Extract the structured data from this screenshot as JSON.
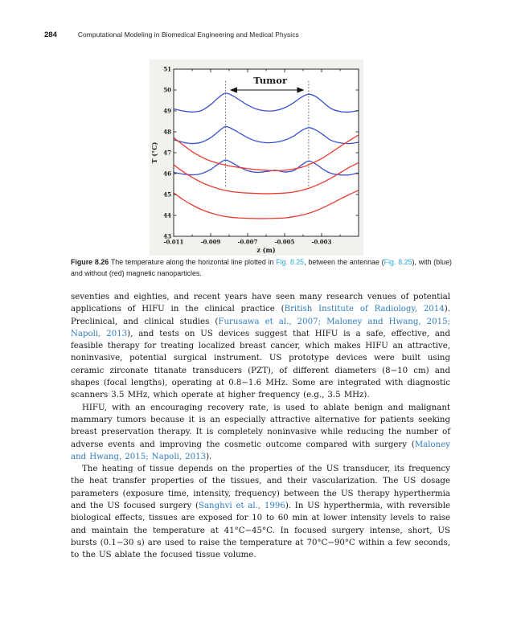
{
  "page": {
    "number": "284",
    "running_title": "Computational Modeling in Biomedical Engineering and Medical Physics"
  },
  "figure_caption": {
    "segments": [
      {
        "text": "Figure 8.26",
        "style": "bold"
      },
      {
        "text": " The temperature along the horizontal line plotted in ",
        "style": "plain"
      },
      {
        "text": "Fig. 8.25",
        "style": "link"
      },
      {
        "text": ", between the antennae (",
        "style": "plain"
      },
      {
        "text": "Fig. 8.25",
        "style": "link"
      },
      {
        "text": "), with (blue) and without (red) magnetic nanoparticles.",
        "style": "plain"
      }
    ]
  },
  "chart_data": {
    "type": "line",
    "title": "",
    "xlabel": "z (m)",
    "ylabel": "T (°C)",
    "xlim": [
      -0.011,
      -0.001
    ],
    "ylim": [
      43,
      51
    ],
    "xticks": {
      "labeled": [
        -0.011,
        -0.009,
        -0.007,
        -0.005,
        -0.003
      ],
      "minor_step": 0.001
    },
    "yticks": [
      43,
      44,
      45,
      46,
      47,
      48,
      49,
      50,
      51
    ],
    "grid": false,
    "legend": "none",
    "annotations": {
      "tumor_label": "Tumor",
      "tumor_region_z": [
        -0.0082,
        -0.0037
      ],
      "dashed_lines_T_range": [
        45.4,
        50.5
      ],
      "arrow_T": 50.0
    },
    "colors": {
      "with_nanoparticles": "#3a4fd2",
      "without_nanoparticles": "#ee3b30",
      "axis": "#2a2a2a",
      "dashed": "#3a3a3a",
      "figure_bg": "#f1f1ee"
    },
    "series": [
      {
        "id": "blue-upper",
        "name": "with nanoparticles (upper)",
        "group": "with_nanoparticles",
        "points": [
          [
            -0.011,
            49.1
          ],
          [
            -0.0105,
            49.0
          ],
          [
            -0.01,
            48.95
          ],
          [
            -0.0095,
            49.02
          ],
          [
            -0.009,
            49.3
          ],
          [
            -0.0086,
            49.62
          ],
          [
            -0.0082,
            49.85
          ],
          [
            -0.0078,
            49.72
          ],
          [
            -0.0074,
            49.5
          ],
          [
            -0.007,
            49.28
          ],
          [
            -0.0065,
            49.08
          ],
          [
            -0.006,
            49.0
          ],
          [
            -0.0055,
            49.02
          ],
          [
            -0.005,
            49.15
          ],
          [
            -0.0045,
            49.4
          ],
          [
            -0.0041,
            49.65
          ],
          [
            -0.0037,
            49.8
          ],
          [
            -0.0033,
            49.68
          ],
          [
            -0.0029,
            49.4
          ],
          [
            -0.0025,
            49.12
          ],
          [
            -0.002,
            48.97
          ],
          [
            -0.0015,
            48.95
          ],
          [
            -0.001,
            49.02
          ]
        ]
      },
      {
        "id": "blue-middle",
        "name": "with nanoparticles (middle)",
        "group": "with_nanoparticles",
        "points": [
          [
            -0.011,
            47.62
          ],
          [
            -0.0105,
            47.5
          ],
          [
            -0.01,
            47.44
          ],
          [
            -0.0095,
            47.5
          ],
          [
            -0.009,
            47.72
          ],
          [
            -0.0086,
            48.0
          ],
          [
            -0.0082,
            48.25
          ],
          [
            -0.0078,
            48.12
          ],
          [
            -0.0074,
            47.92
          ],
          [
            -0.007,
            47.72
          ],
          [
            -0.0065,
            47.55
          ],
          [
            -0.006,
            47.48
          ],
          [
            -0.0055,
            47.5
          ],
          [
            -0.005,
            47.6
          ],
          [
            -0.0045,
            47.8
          ],
          [
            -0.0041,
            48.05
          ],
          [
            -0.0037,
            48.2
          ],
          [
            -0.0033,
            48.08
          ],
          [
            -0.0029,
            47.85
          ],
          [
            -0.0025,
            47.6
          ],
          [
            -0.002,
            47.47
          ],
          [
            -0.0015,
            47.44
          ],
          [
            -0.001,
            47.5
          ]
        ]
      },
      {
        "id": "blue-lower",
        "name": "with nanoparticles (lower)",
        "group": "with_nanoparticles",
        "points": [
          [
            -0.011,
            46.06
          ],
          [
            -0.0105,
            45.98
          ],
          [
            -0.01,
            45.94
          ],
          [
            -0.0095,
            46.0
          ],
          [
            -0.009,
            46.2
          ],
          [
            -0.0086,
            46.45
          ],
          [
            -0.0082,
            46.65
          ],
          [
            -0.0078,
            46.5
          ],
          [
            -0.0074,
            46.3
          ],
          [
            -0.007,
            46.14
          ],
          [
            -0.0065,
            46.06
          ],
          [
            -0.006,
            46.1
          ],
          [
            -0.0055,
            46.16
          ],
          [
            -0.005,
            46.08
          ],
          [
            -0.0045,
            46.15
          ],
          [
            -0.0041,
            46.4
          ],
          [
            -0.0037,
            46.6
          ],
          [
            -0.0033,
            46.45
          ],
          [
            -0.0029,
            46.2
          ],
          [
            -0.0025,
            46.02
          ],
          [
            -0.002,
            45.94
          ],
          [
            -0.0015,
            45.94
          ],
          [
            -0.001,
            46.04
          ]
        ]
      },
      {
        "id": "red-upper",
        "name": "without nanoparticles (upper)",
        "group": "without_nanoparticles",
        "points": [
          [
            -0.011,
            47.72
          ],
          [
            -0.0105,
            47.38
          ],
          [
            -0.01,
            47.05
          ],
          [
            -0.0095,
            46.8
          ],
          [
            -0.009,
            46.6
          ],
          [
            -0.0085,
            46.47
          ],
          [
            -0.008,
            46.37
          ],
          [
            -0.0075,
            46.3
          ],
          [
            -0.007,
            46.24
          ],
          [
            -0.0065,
            46.19
          ],
          [
            -0.006,
            46.16
          ],
          [
            -0.0055,
            46.14
          ],
          [
            -0.005,
            46.16
          ],
          [
            -0.0045,
            46.22
          ],
          [
            -0.004,
            46.32
          ],
          [
            -0.0035,
            46.5
          ],
          [
            -0.003,
            46.72
          ],
          [
            -0.0025,
            47.0
          ],
          [
            -0.002,
            47.3
          ],
          [
            -0.0015,
            47.58
          ],
          [
            -0.001,
            47.85
          ]
        ]
      },
      {
        "id": "red-middle",
        "name": "without nanoparticles (middle)",
        "group": "without_nanoparticles",
        "points": [
          [
            -0.011,
            46.42
          ],
          [
            -0.0105,
            46.1
          ],
          [
            -0.01,
            45.82
          ],
          [
            -0.0095,
            45.58
          ],
          [
            -0.009,
            45.4
          ],
          [
            -0.0085,
            45.26
          ],
          [
            -0.008,
            45.16
          ],
          [
            -0.0075,
            45.1
          ],
          [
            -0.007,
            45.07
          ],
          [
            -0.0065,
            45.05
          ],
          [
            -0.006,
            45.04
          ],
          [
            -0.0055,
            45.05
          ],
          [
            -0.005,
            45.07
          ],
          [
            -0.0045,
            45.12
          ],
          [
            -0.004,
            45.22
          ],
          [
            -0.0035,
            45.36
          ],
          [
            -0.003,
            45.55
          ],
          [
            -0.0025,
            45.78
          ],
          [
            -0.002,
            46.04
          ],
          [
            -0.0015,
            46.3
          ],
          [
            -0.001,
            46.52
          ]
        ]
      },
      {
        "id": "red-lower",
        "name": "without nanoparticles (lower)",
        "group": "without_nanoparticles",
        "points": [
          [
            -0.011,
            45.08
          ],
          [
            -0.0105,
            44.76
          ],
          [
            -0.01,
            44.5
          ],
          [
            -0.0095,
            44.28
          ],
          [
            -0.009,
            44.12
          ],
          [
            -0.0085,
            44.0
          ],
          [
            -0.008,
            43.92
          ],
          [
            -0.0075,
            43.88
          ],
          [
            -0.007,
            43.86
          ],
          [
            -0.0065,
            43.85
          ],
          [
            -0.006,
            43.85
          ],
          [
            -0.0055,
            43.86
          ],
          [
            -0.005,
            43.88
          ],
          [
            -0.0045,
            43.94
          ],
          [
            -0.004,
            44.03
          ],
          [
            -0.0035,
            44.16
          ],
          [
            -0.003,
            44.34
          ],
          [
            -0.0025,
            44.55
          ],
          [
            -0.002,
            44.78
          ],
          [
            -0.0015,
            45.0
          ],
          [
            -0.001,
            45.2
          ]
        ]
      }
    ]
  },
  "body": {
    "paragraphs": [
      {
        "indent": false,
        "segments": [
          {
            "text": "seventies and eighties, and recent years have seen many research venues of potential applications of HIFU in the clinical practice (",
            "style": "plain"
          },
          {
            "text": "British Institute of Radiology, 2014",
            "style": "link"
          },
          {
            "text": "). Preclinical, and clinical studies (",
            "style": "plain"
          },
          {
            "text": "Furusawa et al., 2007; Maloney and Hwang, 2015; Napoli, 2013",
            "style": "link"
          },
          {
            "text": "), and tests on US devices suggest that HIFU is a safe, effective, and feasible therapy for treating localized breast cancer, which makes HIFU an attractive, noninvasive, potential surgical instrument. US prototype devices were built using ceramic zirconate titanate transducers (PZT), of different diameters (8−10 cm) and shapes (focal lengths), operating at 0.8−1.6 MHz. Some are integrated with diagnostic scanners 3.5 MHz, which operate at higher frequency (e.g., 3.5 MHz).",
            "style": "plain"
          }
        ]
      },
      {
        "indent": true,
        "segments": [
          {
            "text": "HIFU, with an encouraging recovery rate, is used to ablate benign and malignant mammary tumors because it is an especially attractive alternative for patients seeking breast preservation therapy. It is completely noninvasive while reducing the number of adverse events and improving the cosmetic outcome compared with surgery (",
            "style": "plain"
          },
          {
            "text": "Maloney and Hwang, 2015; Napoli, 2013",
            "style": "link"
          },
          {
            "text": ").",
            "style": "plain"
          }
        ]
      },
      {
        "indent": true,
        "segments": [
          {
            "text": "The heating of tissue depends on the properties of the US transducer, its frequency the heat transfer properties of the tissues, and their vascularization. The US dosage parameters (exposure time, intensity, frequency) between the US therapy hyperthermia and the US focused surgery (",
            "style": "plain"
          },
          {
            "text": "Sanghvi et al., 1996",
            "style": "link"
          },
          {
            "text": "). In US hyperthermia, with reversible biological effects, tissues are exposed for 10 to 60 min at lower intensity levels to raise and maintain the temperature at 41°C−45°C. In focused surgery intense, short, US bursts (0.1−30 s) are used to raise the temperature at 70°C−90°C within a few seconds, to the US ablate the focused tissue volume.",
            "style": "plain"
          }
        ]
      }
    ]
  }
}
